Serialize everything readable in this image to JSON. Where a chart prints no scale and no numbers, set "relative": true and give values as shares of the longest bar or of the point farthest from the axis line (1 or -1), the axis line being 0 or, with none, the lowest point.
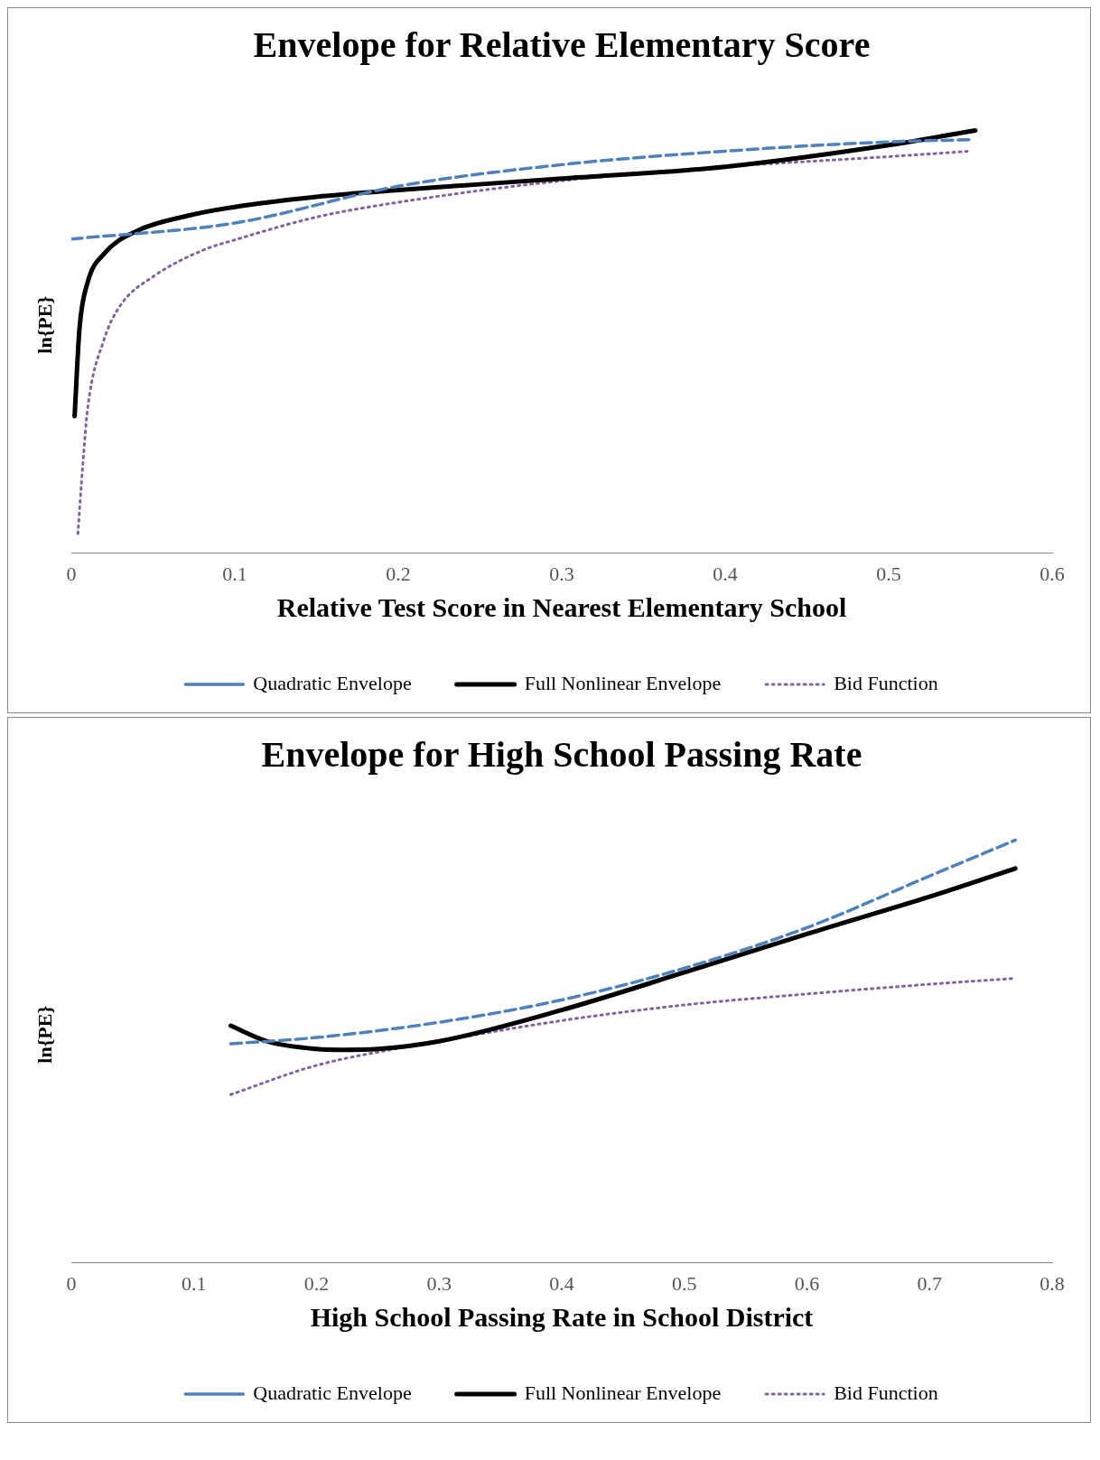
{
  "chart_data": [
    {
      "type": "line",
      "title": "Envelope for Relative Elementary Score",
      "xlabel": "Relative Test Score in Nearest Elementary School",
      "ylabel": "ln{PE}",
      "relative": true,
      "xlim": [
        0,
        0.6
      ],
      "xticks": [
        0,
        0.1,
        0.2,
        0.3,
        0.4,
        0.5,
        0.6
      ],
      "legend": "bottom",
      "grid": false,
      "marker": "none",
      "series": [
        {
          "name": "Quadratic Envelope",
          "color": "#4f81bd",
          "line_style": "dashed",
          "x": [
            0,
            0.1,
            0.2,
            0.3,
            0.4,
            0.5,
            0.55
          ],
          "values": [
            0.743,
            0.781,
            0.868,
            0.919,
            0.951,
            0.973,
            0.978
          ]
        },
        {
          "name": "Full Nonlinear Envelope",
          "color": "#000000",
          "line_style": "solid",
          "x": [
            0.002,
            0.005,
            0.01,
            0.02,
            0.04,
            0.07,
            0.1,
            0.15,
            0.2,
            0.3,
            0.4,
            0.5,
            0.553
          ],
          "values": [
            0.324,
            0.532,
            0.641,
            0.708,
            0.762,
            0.797,
            0.819,
            0.843,
            0.859,
            0.886,
            0.914,
            0.965,
            1
          ]
        },
        {
          "name": "Bid Function",
          "color": "#8064a2",
          "line_style": "dotted",
          "x": [
            0.004,
            0.007,
            0.01,
            0.02,
            0.03,
            0.05,
            0.08,
            0.1,
            0.15,
            0.2,
            0.3,
            0.4,
            0.5,
            0.55
          ],
          "values": [
            0.046,
            0.208,
            0.343,
            0.505,
            0.586,
            0.654,
            0.716,
            0.741,
            0.795,
            0.83,
            0.881,
            0.914,
            0.938,
            0.951
          ]
        }
      ]
    },
    {
      "type": "line",
      "title": "Envelope for High School Passing Rate",
      "xlabel": "High School Passing Rate in School District",
      "ylabel": "ln{PE}",
      "relative": true,
      "xlim": [
        0,
        0.8
      ],
      "xticks": [
        0,
        0.1,
        0.2,
        0.3,
        0.4,
        0.5,
        0.6,
        0.7,
        0.8
      ],
      "legend": "bottom",
      "grid": false,
      "marker": "none",
      "series": [
        {
          "name": "Quadratic Envelope",
          "color": "#4f81bd",
          "line_style": "dashed",
          "x": [
            0.13,
            0.2,
            0.3,
            0.4,
            0.5,
            0.6,
            0.7,
            0.77
          ],
          "values": [
            0.518,
            0.533,
            0.569,
            0.622,
            0.697,
            0.793,
            0.915,
            1
          ]
        },
        {
          "name": "Full Nonlinear Envelope",
          "color": "#000000",
          "line_style": "solid",
          "x": [
            0.13,
            0.16,
            0.2,
            0.22,
            0.25,
            0.3,
            0.4,
            0.5,
            0.6,
            0.7,
            0.77
          ],
          "values": [
            0.561,
            0.524,
            0.506,
            0.504,
            0.506,
            0.524,
            0.598,
            0.687,
            0.778,
            0.866,
            0.933
          ]
        },
        {
          "name": "Bid Function",
          "color": "#8064a2",
          "line_style": "dotted",
          "x": [
            0.13,
            0.2,
            0.3,
            0.4,
            0.5,
            0.6,
            0.7,
            0.77
          ],
          "values": [
            0.398,
            0.467,
            0.524,
            0.573,
            0.61,
            0.636,
            0.659,
            0.673
          ]
        }
      ]
    }
  ]
}
